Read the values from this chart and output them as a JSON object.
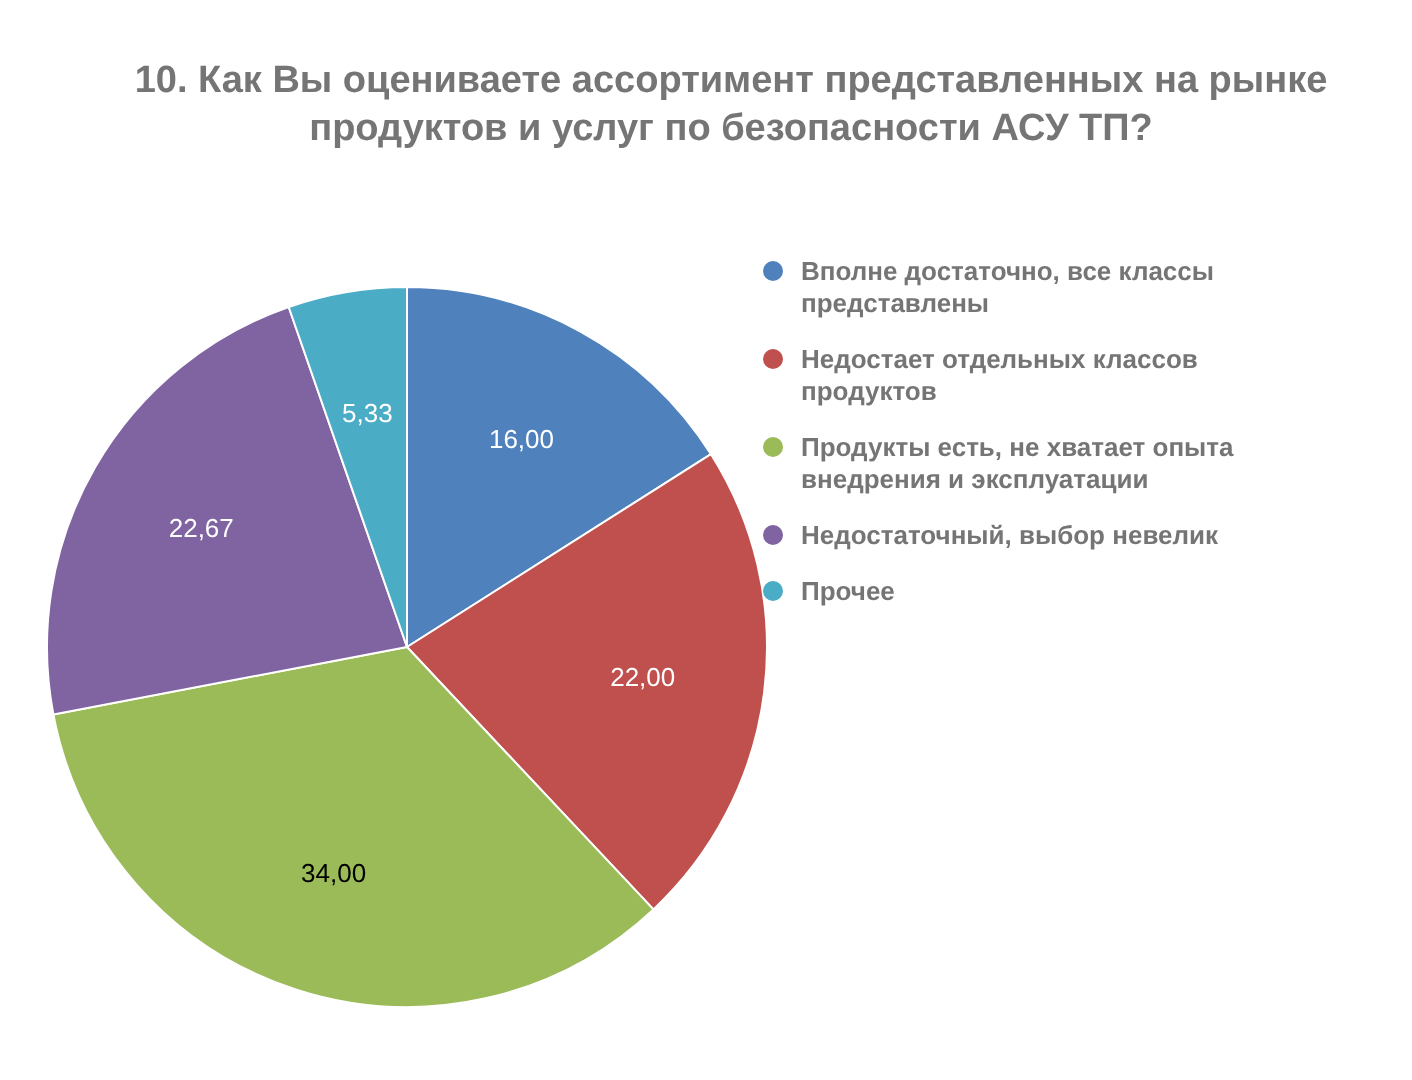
{
  "chart_data": {
    "type": "pie",
    "title": "10. Как Вы оцениваете ассортимент представленных на рынке продуктов и услуг по безопасности АСУ ТП?",
    "categories": [
      "Вполне достаточно, все классы представлены",
      "Недостает отдельных классов продуктов",
      "Продукты есть, не хватает опыта внедрения и эксплуатации",
      "Недостаточный, выбор невелик",
      "Прочее"
    ],
    "values": [
      16.0,
      22.0,
      34.0,
      22.67,
      5.33
    ],
    "value_labels": [
      "16,00",
      "22,00",
      "34,00",
      "22,67",
      "5,33"
    ],
    "colors": [
      "#4f81bd",
      "#c0504d",
      "#9bbb59",
      "#8064a2",
      "#4bacc6"
    ],
    "legend": "right"
  }
}
